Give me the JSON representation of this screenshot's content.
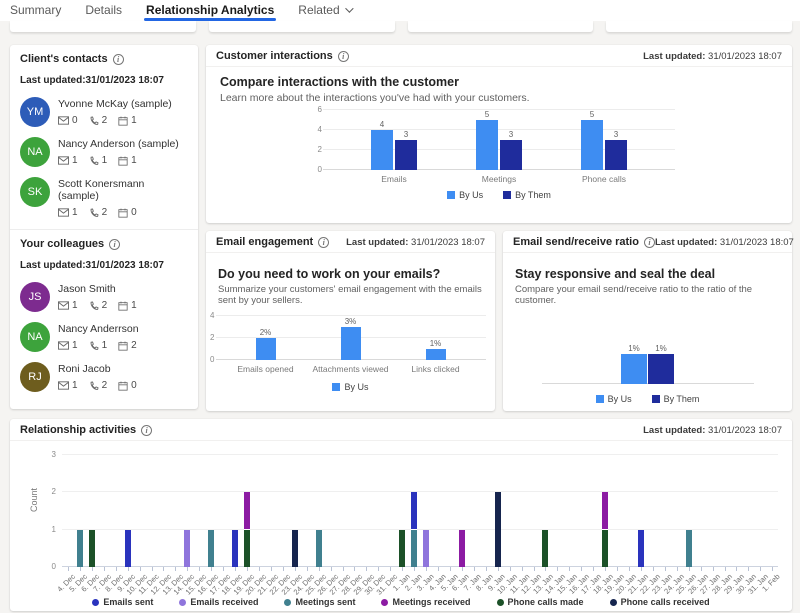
{
  "tab_bar": {
    "tabs": [
      {
        "label": "Summary",
        "active": false,
        "dropdown": false
      },
      {
        "label": "Details",
        "active": false,
        "dropdown": false
      },
      {
        "label": "Relationship Analytics",
        "active": true,
        "dropdown": false
      },
      {
        "label": "Related",
        "active": false,
        "dropdown": true
      }
    ]
  },
  "contacts_card": {
    "title": "Client's contacts",
    "last_updated": "Last updated:31/01/2023 18:07",
    "contacts": [
      {
        "initials": "YM",
        "name": "Yvonne McKay (sample)",
        "avatar_color": "#2d5cb8",
        "emails": "0",
        "phone_calls": "2",
        "meetings": "1"
      },
      {
        "initials": "NA",
        "name": "Nancy Anderson (sample)",
        "avatar_color": "#3da33c",
        "emails": "1",
        "phone_calls": "1",
        "meetings": "1"
      },
      {
        "initials": "SK",
        "name": "Scott Konersmann (sample)",
        "avatar_color": "#3da33c",
        "emails": "1",
        "phone_calls": "2",
        "meetings": "0"
      }
    ]
  },
  "colleagues_card": {
    "title": "Your colleagues",
    "last_updated": "Last updated:31/01/2023 18:07",
    "contacts": [
      {
        "initials": "JS",
        "name": "Jason Smith",
        "avatar_color": "#7d2b8f",
        "emails": "1",
        "phone_calls": "2",
        "meetings": "1"
      },
      {
        "initials": "NA",
        "name": "Nancy Anderrson",
        "avatar_color": "#3da33c",
        "emails": "1",
        "phone_calls": "1",
        "meetings": "2"
      },
      {
        "initials": "RJ",
        "name": "Roni Jacob",
        "avatar_color": "#6e5d1e",
        "emails": "1",
        "phone_calls": "2",
        "meetings": "0"
      }
    ]
  },
  "customer_interactions": {
    "title": "Customer interactions",
    "last_updated_label": "Last updated:",
    "last_updated_value": "31/01/2023 18:07",
    "heading": "Compare interactions with the customer",
    "subheading": "Learn more about the interactions you've had with your customers."
  },
  "email_engagement": {
    "title": "Email engagement",
    "last_updated_label": "Last updated:",
    "last_updated_value": "31/01/2023 18:07",
    "heading": "Do you need to work on your emails?",
    "subheading": "Summarize your customers' email engagement with the emails sent by your sellers."
  },
  "send_receive": {
    "title": "Email send/receive ratio",
    "last_updated_label": "Last updated:",
    "last_updated_value": "31/01/2023 18:07",
    "heading": "Stay responsive and seal the deal",
    "subheading": "Compare your email send/receive ratio to the ratio of the customer."
  },
  "relationship_activities": {
    "title": "Relationship activities",
    "last_updated_label": "Last updated:",
    "last_updated_value": "31/01/2023 18:07"
  },
  "chart_data": [
    {
      "id": "customer-interactions",
      "type": "bar",
      "categories": [
        "Emails",
        "Meetings",
        "Phone calls"
      ],
      "series": [
        {
          "name": "By Us",
          "color": "#3e8df2",
          "values": [
            4,
            5,
            5
          ],
          "display_values": [
            "4",
            "5",
            "5"
          ]
        },
        {
          "name": "By Them",
          "color": "#1f2c9c",
          "values": [
            3,
            3,
            3
          ],
          "display_values": [
            "3",
            "3",
            "3"
          ]
        }
      ],
      "ylim": [
        0,
        6
      ],
      "yticks": [
        0,
        2,
        4,
        6
      ],
      "legend_position": "bottom"
    },
    {
      "id": "email-engagement",
      "type": "bar",
      "categories": [
        "Emails opened",
        "Attachments viewed",
        "Links clicked"
      ],
      "series": [
        {
          "name": "By Us",
          "color": "#3e8df2",
          "values": [
            2,
            3,
            1
          ],
          "display_values": [
            "2%",
            "3%",
            "1%"
          ]
        }
      ],
      "ylim": [
        0,
        4
      ],
      "yticks": [
        0,
        2,
        4
      ],
      "legend_position": "bottom"
    },
    {
      "id": "send-receive-ratio",
      "type": "bar",
      "categories": [
        ""
      ],
      "series": [
        {
          "name": "By Us",
          "color": "#3e8df2",
          "values": [
            1
          ],
          "display_values": [
            "1%"
          ]
        },
        {
          "name": "By Them",
          "color": "#1f2c9c",
          "values": [
            1
          ],
          "display_values": [
            "1%"
          ]
        }
      ],
      "ylim": [
        0,
        2
      ],
      "yticks": [],
      "legend_position": "bottom"
    },
    {
      "id": "relationship-activities",
      "type": "stacked_bar",
      "ylabel": "Count",
      "ylim": [
        0,
        3
      ],
      "yticks": [
        0,
        1,
        2,
        3
      ],
      "categories": [
        "4. Dec",
        "5. Dec",
        "6. Dec",
        "7. Dec",
        "8. Dec",
        "9. Dec",
        "10. Dec",
        "11. Dec",
        "12. Dec",
        "13. Dec",
        "14. Dec",
        "15. Dec",
        "16. Dec",
        "17. Dec",
        "18. Dec",
        "19. Dec",
        "20. Dec",
        "21. Dec",
        "22. Dec",
        "23. Dec",
        "24. Dec",
        "25. Dec",
        "26. Dec",
        "27. Dec",
        "28. Dec",
        "29. Dec",
        "30. Dec",
        "31. Dec",
        "1. Jan",
        "2. Jan",
        "3. Jan",
        "4. Jan",
        "5. Jan",
        "6. Jan",
        "7. Jan",
        "8. Jan",
        "9. Jan",
        "10. Jan",
        "11. Jan",
        "12. Jan",
        "13. Jan",
        "14. Jan",
        "15. Jan",
        "16. Jan",
        "17. Jan",
        "18. Jan",
        "19. Jan",
        "20. Jan",
        "21. Jan",
        "22. Jan",
        "23. Jan",
        "24. Jan",
        "25. Jan",
        "26. Jan",
        "27. Jan",
        "28. Jan",
        "29. Jan",
        "30. Jan",
        "31. Jan",
        "1. Feb"
      ],
      "series_colors": {
        "Emails sent": "#2a33bd",
        "Emails received": "#8f75dc",
        "Meetings sent": "#40808f",
        "Meetings received": "#8c1ba3",
        "Phone calls made": "#1c5128",
        "Phone calls received": "#16254e"
      },
      "legend": [
        "Emails sent",
        "Emails received",
        "Meetings sent",
        "Meetings received",
        "Phone calls made",
        "Phone calls received"
      ],
      "bars": [
        {
          "date": "5. Dec",
          "segments": [
            [
              "Meetings sent",
              1
            ]
          ]
        },
        {
          "date": "6. Dec",
          "segments": [
            [
              "Phone calls made",
              1
            ]
          ]
        },
        {
          "date": "9. Dec",
          "segments": [
            [
              "Emails sent",
              1
            ]
          ]
        },
        {
          "date": "14. Dec",
          "segments": [
            [
              "Emails received",
              1
            ]
          ]
        },
        {
          "date": "16. Dec",
          "segments": [
            [
              "Meetings sent",
              1
            ]
          ]
        },
        {
          "date": "18. Dec",
          "segments": [
            [
              "Emails sent",
              1
            ]
          ]
        },
        {
          "date": "19. Dec",
          "segments": [
            [
              "Phone calls made",
              1
            ],
            [
              "Meetings received",
              1
            ]
          ]
        },
        {
          "date": "23. Dec",
          "segments": [
            [
              "Phone calls received",
              1
            ]
          ]
        },
        {
          "date": "25. Dec",
          "segments": [
            [
              "Meetings sent",
              1
            ]
          ]
        },
        {
          "date": "1. Jan",
          "segments": [
            [
              "Phone calls made",
              1
            ]
          ]
        },
        {
          "date": "2. Jan",
          "segments": [
            [
              "Meetings sent",
              1
            ],
            [
              "Emails sent",
              1
            ]
          ]
        },
        {
          "date": "3. Jan",
          "segments": [
            [
              "Emails received",
              1
            ]
          ]
        },
        {
          "date": "6. Jan",
          "segments": [
            [
              "Meetings received",
              1
            ]
          ]
        },
        {
          "date": "9. Jan",
          "segments": [
            [
              "Phone calls received",
              2
            ]
          ]
        },
        {
          "date": "13. Jan",
          "segments": [
            [
              "Phone calls made",
              1
            ]
          ]
        },
        {
          "date": "18. Jan",
          "segments": [
            [
              "Phone calls made",
              1
            ],
            [
              "Meetings received",
              1
            ]
          ]
        },
        {
          "date": "21. Jan",
          "segments": [
            [
              "Emails sent",
              1
            ]
          ]
        },
        {
          "date": "25. Jan",
          "segments": [
            [
              "Meetings sent",
              1
            ]
          ]
        }
      ]
    }
  ]
}
